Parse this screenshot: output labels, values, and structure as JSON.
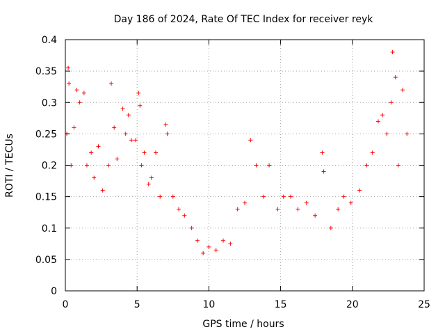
{
  "chart_data": {
    "type": "scatter",
    "title": "Day 186 of 2024, Rate Of TEC Index for receiver reyk",
    "xlabel": "GPS time / hours",
    "ylabel": "ROTI / TECUs",
    "xlim": [
      0,
      25
    ],
    "ylim": [
      0,
      0.4
    ],
    "xticks": [
      0,
      5,
      10,
      15,
      20,
      25
    ],
    "xtick_labels": [
      "0",
      "5",
      "10",
      "15",
      "20",
      "25"
    ],
    "yticks": [
      0,
      0.05,
      0.1,
      0.15,
      0.2,
      0.25,
      0.3,
      0.35,
      0.4
    ],
    "ytick_labels": [
      "0",
      "0.05",
      "0.1",
      "0.15",
      "0.2",
      "0.25",
      "0.3",
      "0.35",
      "0.4"
    ],
    "grid": true,
    "marker": "+",
    "color": "#ff0000",
    "series": [
      {
        "name": "ROTI",
        "x": [
          0.1,
          0.2,
          0.25,
          0.4,
          0.6,
          0.8,
          1.0,
          1.3,
          1.5,
          1.8,
          2.0,
          2.3,
          2.6,
          3.0,
          3.2,
          3.4,
          3.6,
          4.0,
          4.2,
          4.4,
          4.6,
          4.9,
          5.1,
          5.2,
          5.3,
          5.5,
          5.8,
          6.0,
          6.3,
          6.6,
          7.0,
          7.1,
          7.5,
          7.9,
          8.3,
          8.8,
          9.2,
          9.6,
          10.0,
          10.5,
          11.0,
          11.5,
          12.0,
          12.5,
          12.9,
          13.3,
          13.8,
          14.2,
          14.8,
          15.2,
          15.7,
          16.2,
          16.8,
          17.4,
          17.9,
          18.0,
          18.5,
          19.0,
          19.4,
          19.9,
          20.5,
          21.0,
          21.4,
          21.8,
          22.1,
          22.4,
          22.7,
          22.8,
          23.0,
          23.2,
          23.5,
          23.8
        ],
        "y": [
          0.25,
          0.355,
          0.33,
          0.2,
          0.26,
          0.32,
          0.3,
          0.315,
          0.2,
          0.22,
          0.18,
          0.23,
          0.16,
          0.2,
          0.33,
          0.26,
          0.21,
          0.29,
          0.25,
          0.28,
          0.24,
          0.24,
          0.315,
          0.295,
          0.2,
          0.22,
          0.17,
          0.18,
          0.22,
          0.15,
          0.265,
          0.25,
          0.15,
          0.13,
          0.12,
          0.1,
          0.08,
          0.06,
          0.07,
          0.065,
          0.08,
          0.075,
          0.13,
          0.14,
          0.24,
          0.2,
          0.15,
          0.2,
          0.13,
          0.15,
          0.15,
          0.13,
          0.14,
          0.12,
          0.22,
          0.19,
          0.1,
          0.13,
          0.15,
          0.14,
          0.16,
          0.2,
          0.22,
          0.27,
          0.28,
          0.25,
          0.3,
          0.38,
          0.34,
          0.2,
          0.32,
          0.25
        ]
      }
    ]
  }
}
